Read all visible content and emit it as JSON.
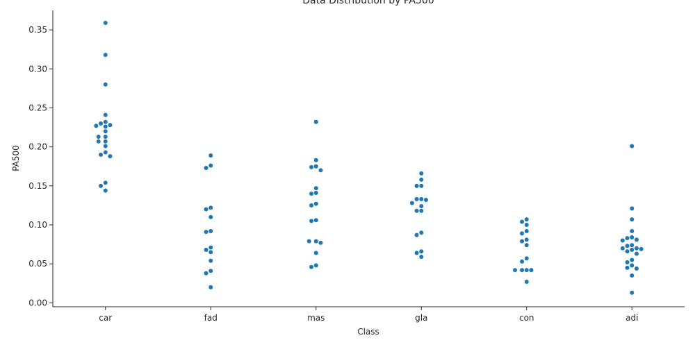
{
  "chart_data": {
    "type": "scatter",
    "title": "Data Distribution by PA500",
    "xlabel": "Class",
    "ylabel": "PA500",
    "ylim": [
      -0.005,
      0.375
    ],
    "yticks": [
      0.0,
      0.05,
      0.1,
      0.15,
      0.2,
      0.25,
      0.3,
      0.35
    ],
    "ytick_labels": [
      "0.00",
      "0.05",
      "0.10",
      "0.15",
      "0.20",
      "0.25",
      "0.30",
      "0.35"
    ],
    "categories": [
      "car",
      "fad",
      "mas",
      "gla",
      "con",
      "adi"
    ],
    "grid": false,
    "color": "#1f77b4",
    "groups": [
      {
        "category": "car",
        "values": [
          0.359,
          0.318,
          0.28,
          0.241,
          0.232,
          0.23,
          0.228,
          0.227,
          0.226,
          0.22,
          0.213,
          0.213,
          0.207,
          0.207,
          0.201,
          0.193,
          0.19,
          0.188,
          0.154,
          0.15,
          0.144
        ]
      },
      {
        "category": "fad",
        "values": [
          0.189,
          0.176,
          0.173,
          0.122,
          0.12,
          0.11,
          0.092,
          0.091,
          0.071,
          0.068,
          0.065,
          0.054,
          0.041,
          0.038,
          0.02
        ]
      },
      {
        "category": "mas",
        "values": [
          0.232,
          0.183,
          0.175,
          0.174,
          0.17,
          0.147,
          0.141,
          0.14,
          0.127,
          0.125,
          0.106,
          0.105,
          0.079,
          0.079,
          0.077,
          0.064,
          0.048,
          0.046
        ]
      },
      {
        "category": "gla",
        "values": [
          0.166,
          0.158,
          0.15,
          0.15,
          0.133,
          0.133,
          0.132,
          0.128,
          0.124,
          0.118,
          0.118,
          0.09,
          0.087,
          0.066,
          0.064,
          0.059
        ]
      },
      {
        "category": "con",
        "values": [
          0.107,
          0.104,
          0.1,
          0.092,
          0.089,
          0.081,
          0.079,
          0.074,
          0.057,
          0.053,
          0.042,
          0.042,
          0.042,
          0.042,
          0.027
        ]
      },
      {
        "category": "adi",
        "values": [
          0.201,
          0.121,
          0.107,
          0.092,
          0.084,
          0.083,
          0.081,
          0.08,
          0.074,
          0.073,
          0.07,
          0.07,
          0.069,
          0.068,
          0.066,
          0.063,
          0.055,
          0.052,
          0.048,
          0.045,
          0.044,
          0.035,
          0.013
        ]
      }
    ]
  }
}
